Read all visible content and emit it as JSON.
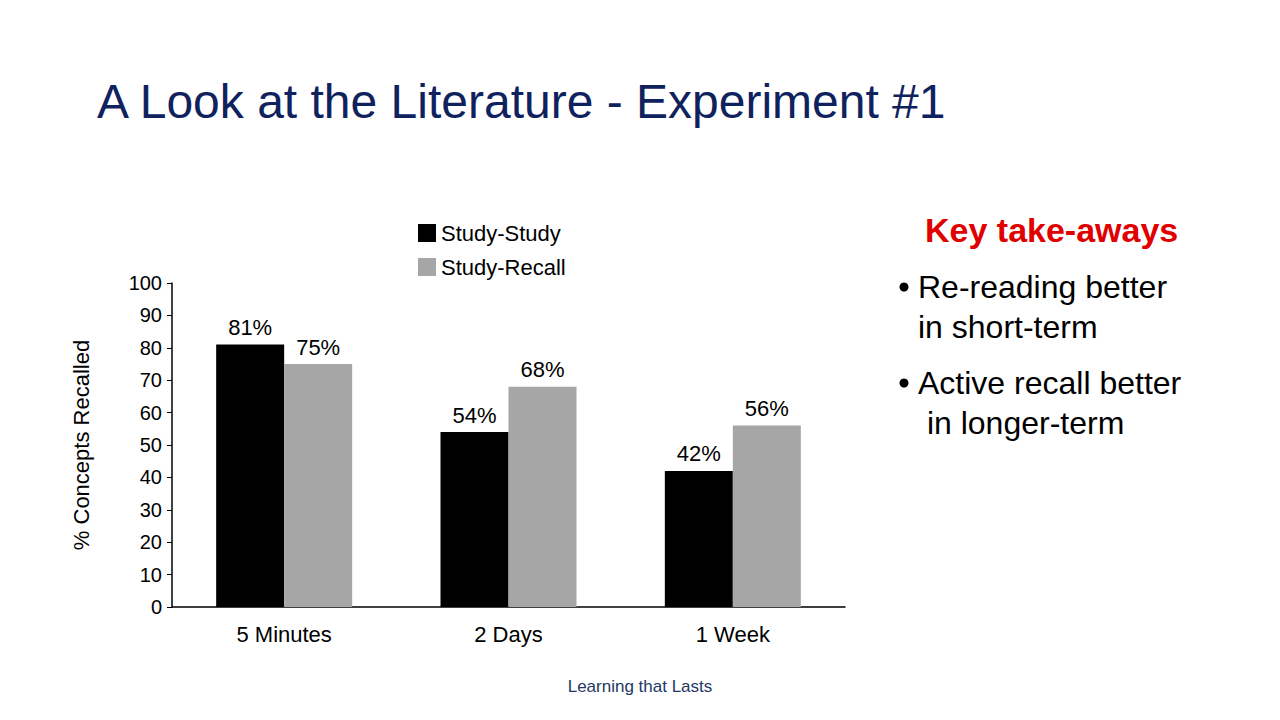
{
  "chart_data": {
    "type": "bar",
    "title": "A Look at the Literature - Experiment #1",
    "y_label": "% Concepts Recalled",
    "categories": [
      "5 Minutes",
      "2 Days",
      "1 Week"
    ],
    "series": [
      {
        "name": "Study-Study",
        "color": "#000000",
        "values": [
          81,
          54,
          42
        ],
        "value_labels": [
          "81%",
          "54%",
          "42%"
        ]
      },
      {
        "name": "Study-Recall",
        "color": "#a6a6a6",
        "values": [
          75,
          68,
          56
        ],
        "value_labels": [
          "75%",
          "68%",
          "56%"
        ]
      }
    ],
    "ylim": [
      0,
      100
    ],
    "yticks": [
      0,
      10,
      20,
      30,
      40,
      50,
      60,
      70,
      80,
      90,
      100
    ],
    "grid": false,
    "legend": "top",
    "data_labels": true,
    "annotations": {
      "heading": "Key take-aways",
      "items": [
        "Re-reading better in short-term",
        "Active recall better in longer-term"
      ]
    },
    "footer": "Learning that Lasts"
  }
}
